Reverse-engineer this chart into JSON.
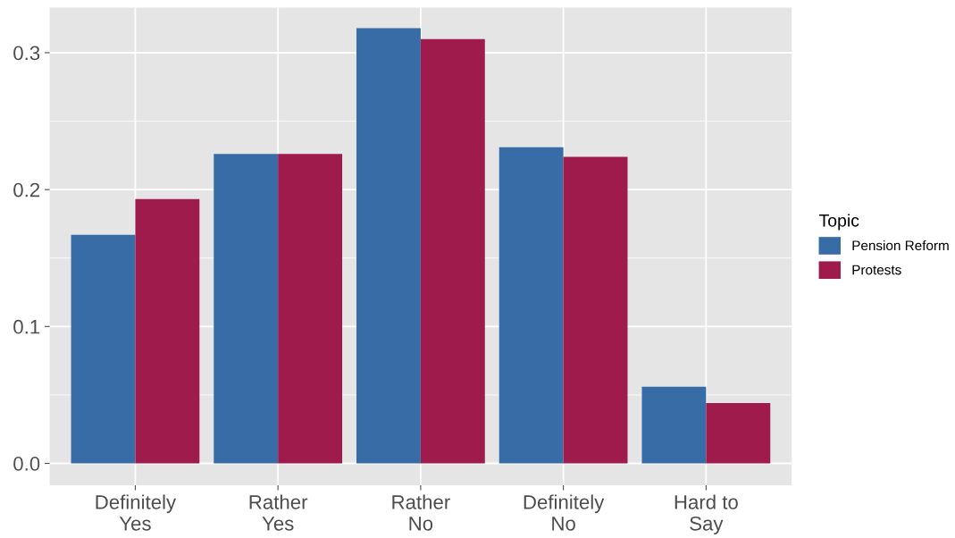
{
  "chart_data": {
    "type": "bar",
    "categories": [
      "Definitely\nYes",
      "Rather\nYes",
      "Rather\nNo",
      "Definitely\nNo",
      "Hard to\nSay"
    ],
    "series": [
      {
        "name": "Pension Reform",
        "color": "#386ca6",
        "values": [
          0.167,
          0.226,
          0.318,
          0.231,
          0.056
        ]
      },
      {
        "name": "Protests",
        "color": "#9e1b4c",
        "values": [
          0.193,
          0.226,
          0.31,
          0.224,
          0.044
        ]
      }
    ],
    "ylim": [
      -0.016,
      0.333
    ],
    "yticks": [
      {
        "value": 0,
        "label": "0.0"
      },
      {
        "value": 0.1,
        "label": "0.1"
      },
      {
        "value": 0.2,
        "label": "0.2"
      },
      {
        "value": 0.3,
        "label": "0.3"
      }
    ],
    "grid": true,
    "legend": "right",
    "legend_title": "Topic"
  }
}
